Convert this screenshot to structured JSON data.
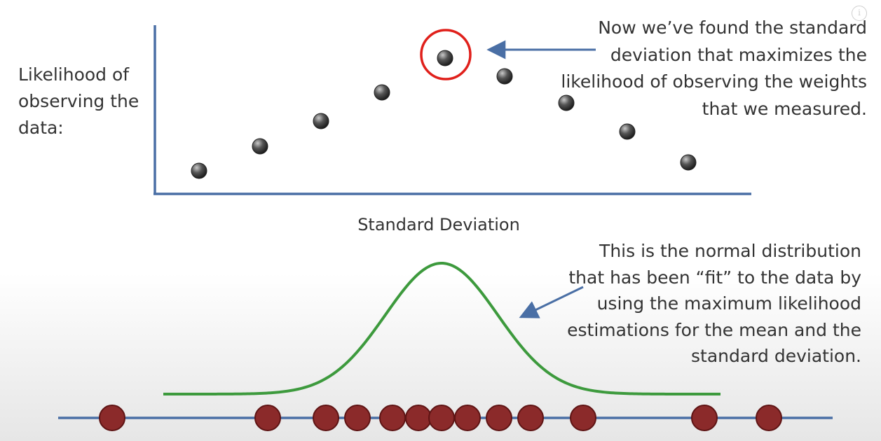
{
  "likelihood_plot": {
    "y_label": "Likelihood of observing the data:",
    "x_label": "Standard Deviation",
    "highlight_note": "Now we’ve found the standard deviation that maximizes the likelihood of observing the weights that we measured."
  },
  "distribution": {
    "fit_note": "This is the normal distribution that has been “fit” to the data by using the maximum likelihood estimations for the mean and the standard deviation."
  },
  "colors": {
    "axis": "#4a6fa5",
    "point": "#3c3c3c",
    "highlight_circle": "#e0201b",
    "arrow": "#4a6fa5",
    "curve": "#3d9a3d",
    "measurement": "#8b2a2a",
    "measurement_stroke": "#5e1414",
    "number_line": "#4a6fa5"
  },
  "icons": {
    "info": "info-icon"
  },
  "info_glyph": "i"
}
